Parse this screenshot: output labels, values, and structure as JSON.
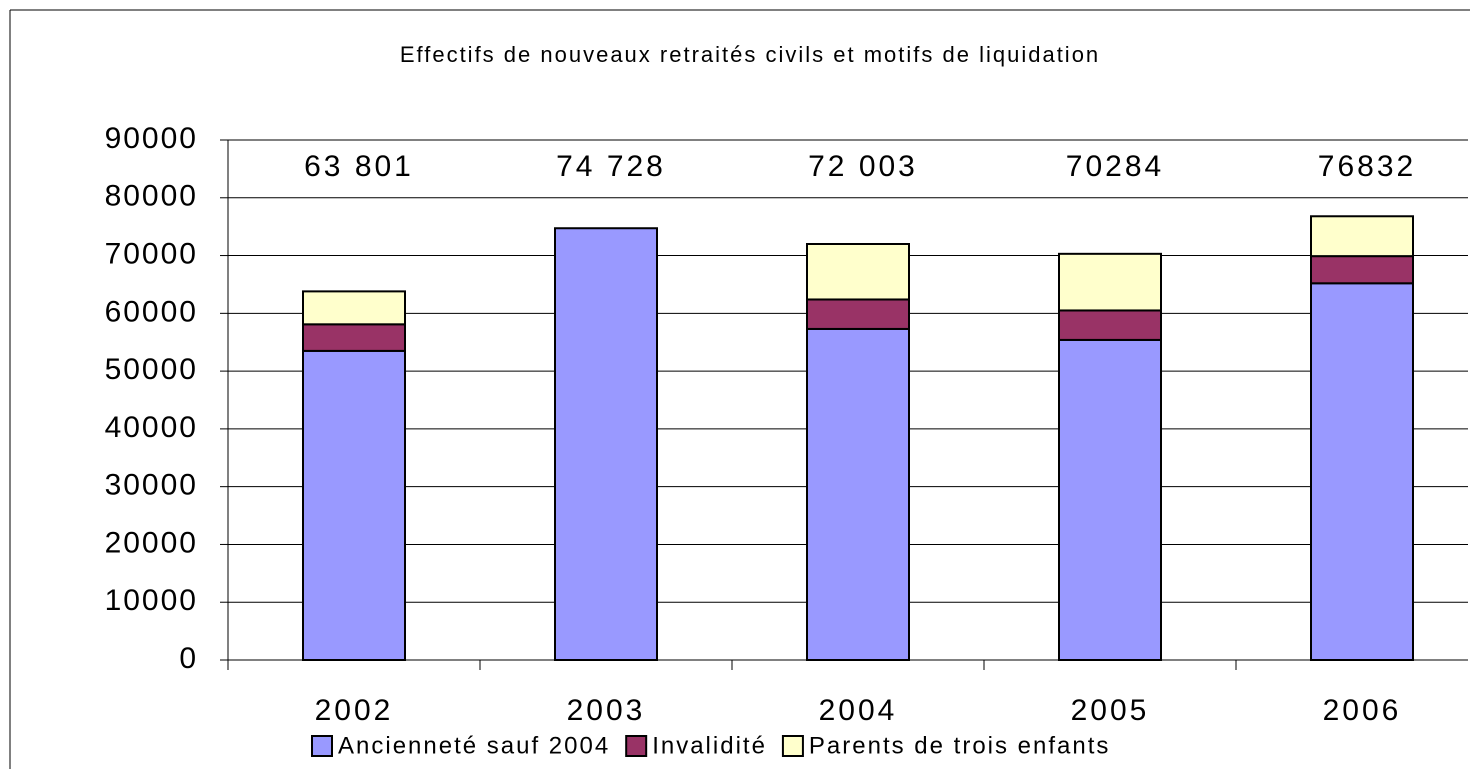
{
  "chart_data": {
    "type": "stacked-bar",
    "title": "Effectifs de nouveaux retraités civils et motifs de liquidation",
    "categories": [
      "2002",
      "2003",
      "2004",
      "2005",
      "2006"
    ],
    "series": [
      {
        "name": "Ancienneté sauf 2004",
        "color": "#9999ff",
        "values": [
          53500,
          74728,
          57300,
          55400,
          65200
        ]
      },
      {
        "name": "Invalidité",
        "color": "#993366",
        "values": [
          4600,
          0,
          5100,
          5100,
          4700
        ]
      },
      {
        "name": "Parents de trois enfants",
        "color": "#ffffcc",
        "values": [
          5700,
          0,
          9600,
          9800,
          6900
        ]
      }
    ],
    "totals": {
      "values": [
        63801,
        74728,
        72003,
        70284,
        76832
      ],
      "value_labels": [
        "63 801",
        "74 728",
        "72 003",
        "70284",
        "76832"
      ]
    },
    "ylim": [
      0,
      90000
    ],
    "yticks": [
      0,
      10000,
      20000,
      30000,
      40000,
      50000,
      60000,
      70000,
      80000,
      90000
    ],
    "grid": true,
    "legend": "bottom"
  }
}
